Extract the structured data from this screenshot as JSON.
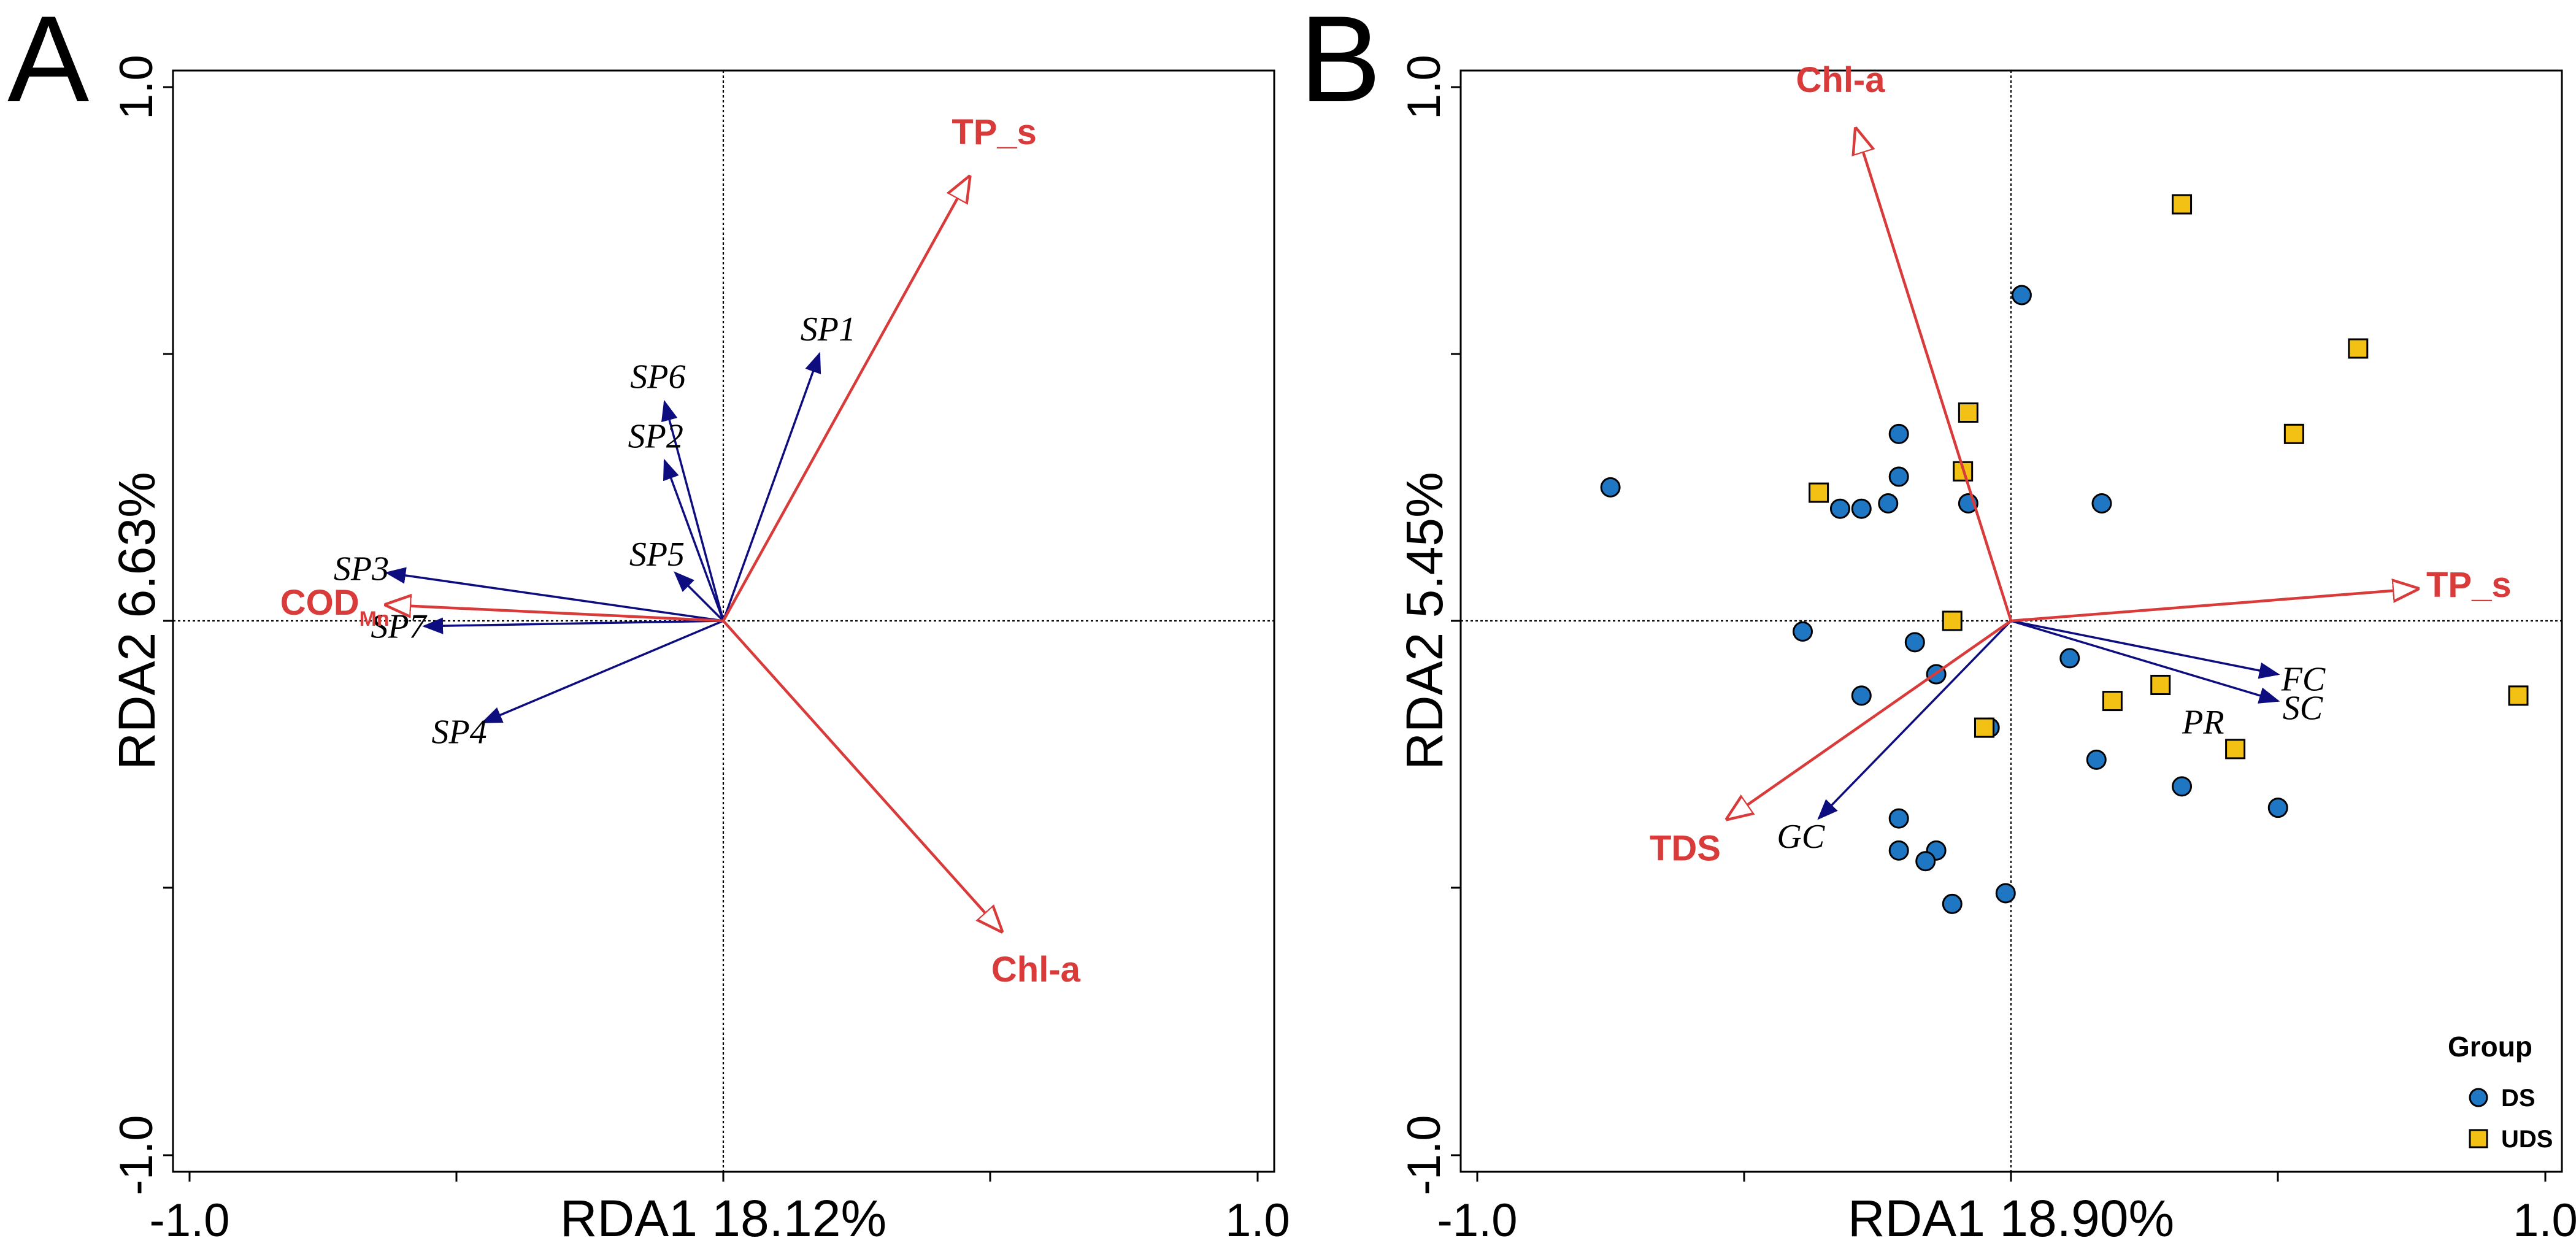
{
  "chart_data": [
    {
      "type": "scatter",
      "panel_label": "A",
      "xlabel": "RDA1 18.12%",
      "ylabel": "RDA2 6.63%",
      "xlim": [
        -1.0,
        1.0
      ],
      "ylim": [
        -1.0,
        1.0
      ],
      "xtick_labels": [
        "-1.0",
        "1.0"
      ],
      "ytick_labels": [
        "-1.0",
        "1.0"
      ],
      "zero_lines": true,
      "env_arrows": [
        {
          "name": "TP_s",
          "x": 0.46,
          "y": 0.83
        },
        {
          "name": "Chl-a",
          "x": 0.52,
          "y": -0.58
        },
        {
          "name": "COD",
          "subscript": "Mn",
          "x": -0.63,
          "y": 0.03
        }
      ],
      "species_arrows": [
        {
          "name": "SP1",
          "x": 0.18,
          "y": 0.5
        },
        {
          "name": "SP6",
          "x": -0.11,
          "y": 0.41
        },
        {
          "name": "SP2",
          "x": -0.11,
          "y": 0.3
        },
        {
          "name": "SP5",
          "x": -0.09,
          "y": 0.09
        },
        {
          "name": "SP3",
          "x": -0.63,
          "y": 0.09
        },
        {
          "name": "SP7",
          "x": -0.56,
          "y": -0.01
        },
        {
          "name": "SP4",
          "x": -0.45,
          "y": -0.19
        }
      ]
    },
    {
      "type": "scatter",
      "panel_label": "B",
      "xlabel": "RDA1 18.90%",
      "ylabel": "RDA2 5.45%",
      "xlim": [
        -1.0,
        1.0
      ],
      "ylim": [
        -1.0,
        1.0
      ],
      "xtick_labels": [
        "-1.0",
        "1.0"
      ],
      "ytick_labels": [
        "-1.0",
        "1.0"
      ],
      "zero_lines": true,
      "env_arrows": [
        {
          "name": "Chl-a",
          "x": -0.29,
          "y": 0.92
        },
        {
          "name": "TP_s",
          "x": 0.76,
          "y": 0.06
        },
        {
          "name": "TDS",
          "x": -0.53,
          "y": -0.37
        }
      ],
      "species_arrows": [
        {
          "name": "FC",
          "x": 0.5,
          "y": -0.1
        },
        {
          "name": "SC",
          "x": 0.5,
          "y": -0.15
        },
        {
          "name": "GC",
          "x": -0.36,
          "y": -0.37
        }
      ],
      "extra_labels": [
        {
          "text": "PR",
          "x": 0.36,
          "y": -0.19
        }
      ],
      "legend": {
        "title": "Group",
        "position": "bottom-right",
        "entries": [
          {
            "label": "DS",
            "marker": "circle",
            "color": "#1f77c4"
          },
          {
            "label": "UDS",
            "marker": "square",
            "color": "#f2c113"
          }
        ]
      },
      "series": [
        {
          "name": "DS",
          "color": "#1f77c4",
          "points": [
            [
              -0.75,
              0.25
            ],
            [
              0.02,
              0.61
            ],
            [
              -0.21,
              0.35
            ],
            [
              -0.21,
              0.27
            ],
            [
              -0.32,
              0.21
            ],
            [
              -0.28,
              0.21
            ],
            [
              -0.23,
              0.22
            ],
            [
              -0.08,
              0.22
            ],
            [
              0.17,
              0.22
            ],
            [
              -0.39,
              -0.02
            ],
            [
              -0.18,
              -0.04
            ],
            [
              -0.14,
              -0.1
            ],
            [
              0.11,
              -0.07
            ],
            [
              -0.28,
              -0.14
            ],
            [
              -0.04,
              -0.2
            ],
            [
              0.16,
              -0.26
            ],
            [
              0.32,
              -0.31
            ],
            [
              0.5,
              -0.35
            ],
            [
              -0.21,
              -0.37
            ],
            [
              -0.21,
              -0.43
            ],
            [
              -0.14,
              -0.43
            ],
            [
              -0.16,
              -0.45
            ],
            [
              -0.11,
              -0.53
            ],
            [
              -0.01,
              -0.51
            ]
          ]
        },
        {
          "name": "UDS",
          "color": "#f2c113",
          "points": [
            [
              0.32,
              0.78
            ],
            [
              0.65,
              0.51
            ],
            [
              0.53,
              0.35
            ],
            [
              -0.08,
              0.39
            ],
            [
              -0.09,
              0.28
            ],
            [
              -0.36,
              0.24
            ],
            [
              -0.11,
              0.0
            ],
            [
              0.28,
              -0.12
            ],
            [
              0.19,
              -0.15
            ],
            [
              -0.05,
              -0.2
            ],
            [
              0.42,
              -0.24
            ],
            [
              0.95,
              -0.14
            ]
          ]
        }
      ]
    }
  ]
}
